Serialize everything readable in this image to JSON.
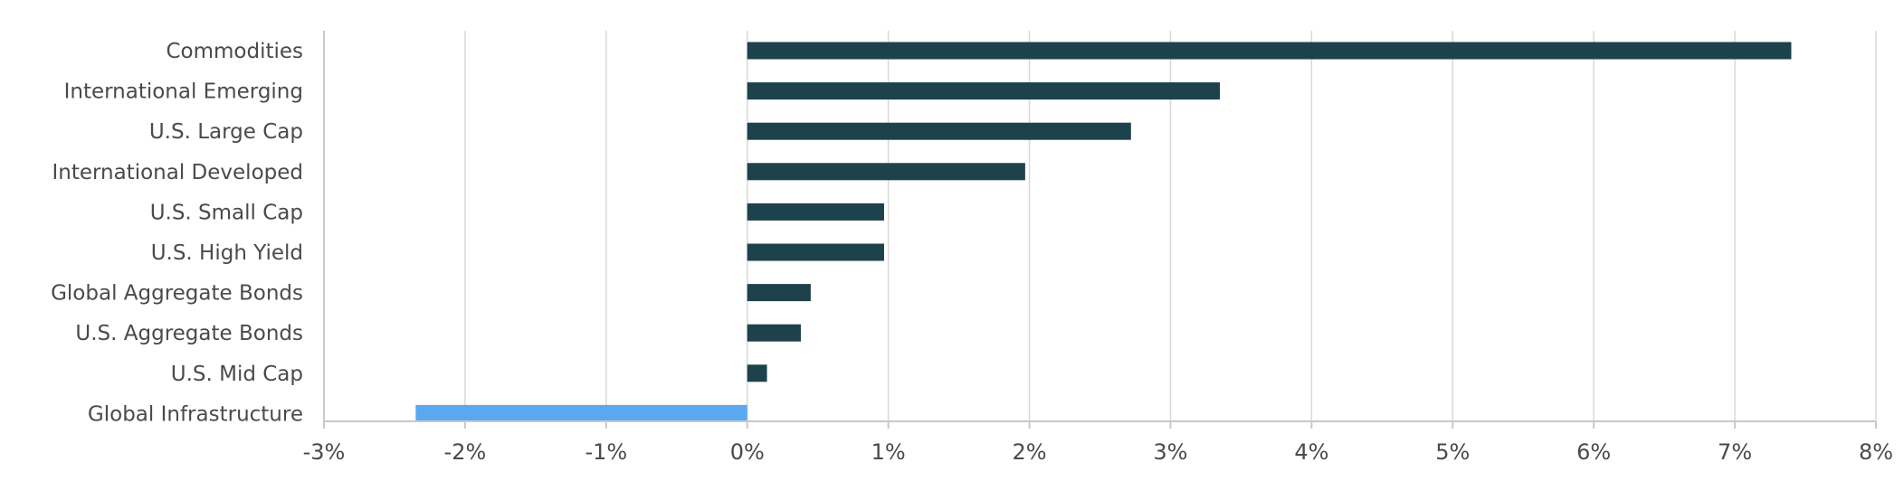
{
  "chart_data": {
    "type": "bar",
    "orientation": "horizontal",
    "categories": [
      "Commodities",
      "International Emerging",
      "U.S. Large Cap",
      "International Developed",
      "U.S. Small Cap",
      "U.S. High Yield",
      "Global Aggregate Bonds",
      "U.S. Aggregate Bonds",
      "U.S. Mid Cap",
      "Global Infrastructure"
    ],
    "values": [
      7.4,
      3.35,
      2.72,
      1.97,
      0.97,
      0.97,
      0.45,
      0.38,
      0.14,
      -2.35
    ],
    "unit": "%",
    "xlim": [
      -3,
      8
    ],
    "xticks": [
      -3,
      -2,
      -1,
      0,
      1,
      2,
      3,
      4,
      5,
      6,
      7,
      8
    ],
    "xtick_labels": [
      "-3%",
      "-2%",
      "-1%",
      "0%",
      "1%",
      "2%",
      "3%",
      "4%",
      "5%",
      "6%",
      "7%",
      "8%"
    ],
    "title": "",
    "xlabel": "",
    "ylabel": "",
    "grid": true,
    "legend": "none",
    "colors": {
      "positive": "#1e424b",
      "negative": "#5aa9f0",
      "grid": "#d9d9d9",
      "text": "#4a4a4a"
    }
  }
}
